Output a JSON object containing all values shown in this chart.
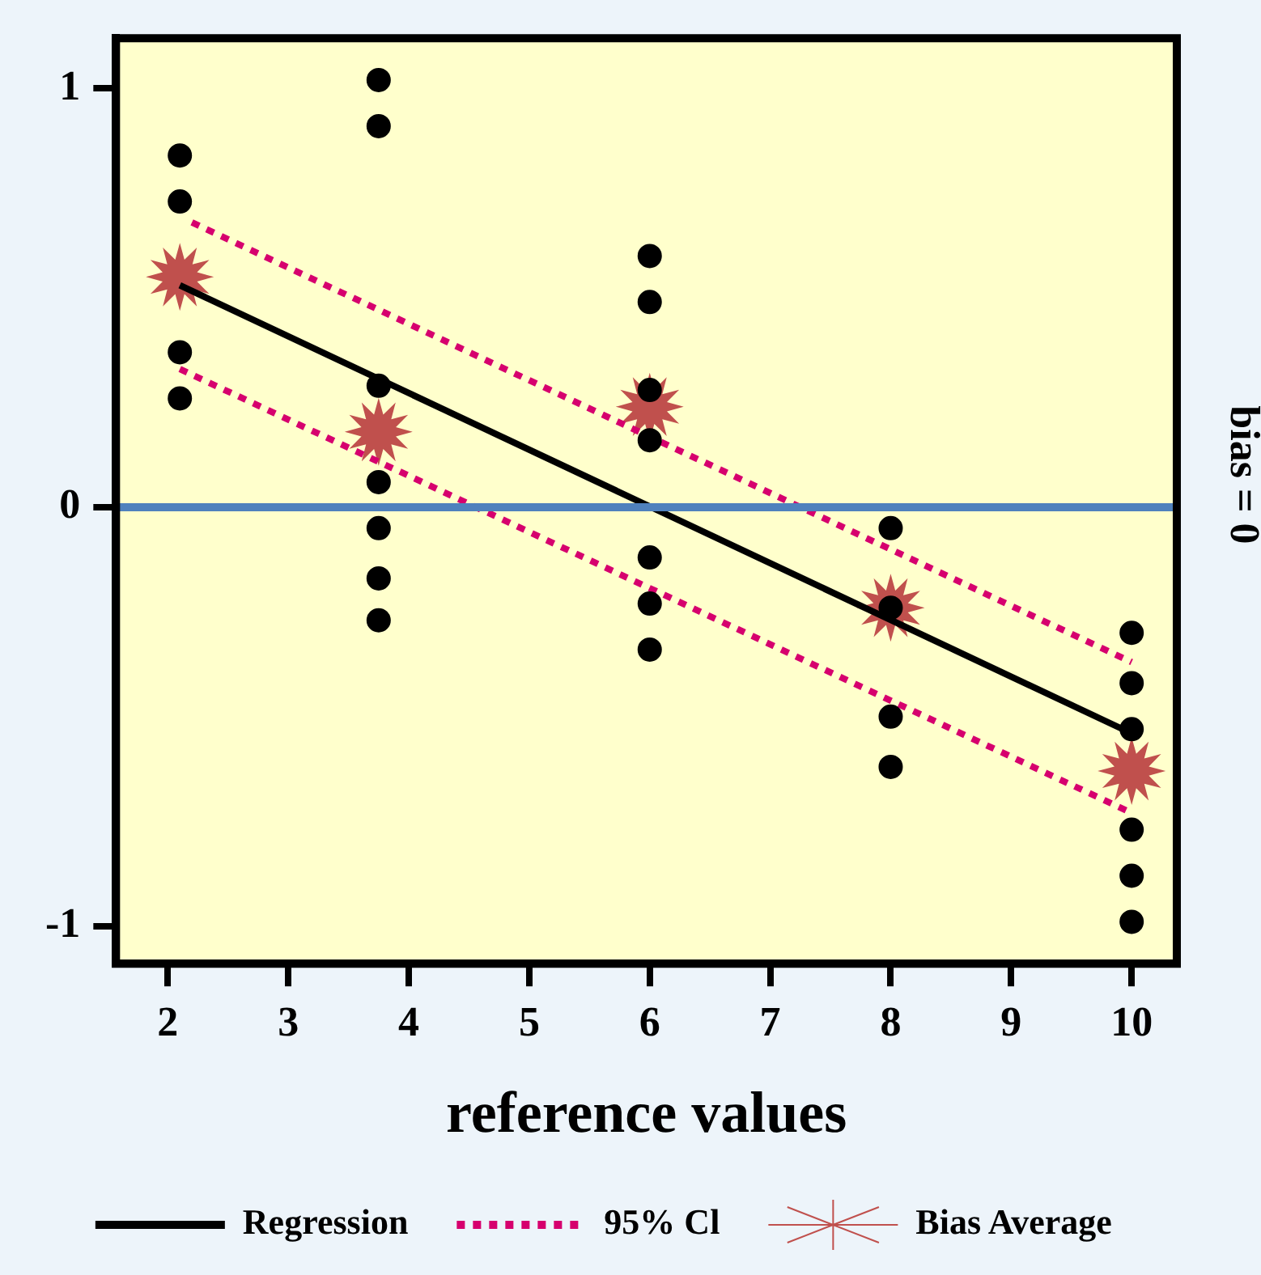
{
  "chart_data": {
    "type": "scatter",
    "xlabel": "reference values",
    "xlim": [
      1.57,
      10.375
    ],
    "xticks": [
      2,
      3,
      4,
      5,
      6,
      7,
      8,
      9,
      10
    ],
    "ylim": [
      -1.09,
      1.12
    ],
    "yticks": [
      -1,
      0,
      1
    ],
    "grid": false,
    "legend": "bottom",
    "series": [
      {
        "type": "scatter",
        "color": "#000000",
        "marker": "circle",
        "x": [
          2.1,
          2.1,
          2.1,
          2.1,
          3.75,
          3.75,
          3.75,
          3.75,
          3.75,
          3.75,
          3.75,
          6,
          6,
          6,
          6,
          6,
          6,
          6,
          8,
          8,
          8,
          8,
          10,
          10,
          10,
          10,
          10,
          10
        ],
        "values": [
          0.84,
          0.73,
          0.37,
          0.26,
          1.02,
          0.91,
          0.29,
          0.06,
          -0.05,
          -0.17,
          -0.27,
          0.6,
          0.49,
          0.28,
          0.16,
          -0.12,
          -0.23,
          -0.34,
          -0.05,
          -0.24,
          -0.5,
          -0.62,
          -0.3,
          -0.42,
          -0.53,
          -0.77,
          -0.88,
          -0.99
        ]
      },
      {
        "type": "line",
        "name": "Regression",
        "color": "#000000",
        "line_style": "solid",
        "marker": "none",
        "x": [
          2.1,
          10
        ],
        "values": [
          0.53,
          -0.54
        ]
      },
      {
        "type": "line",
        "name": "95% Cl",
        "color": "#d6006e",
        "line_style": "dotted",
        "marker": "none",
        "x": [
          2.2,
          10
        ],
        "values": [
          0.68,
          -0.37
        ]
      },
      {
        "type": "line",
        "color": "#d6006e",
        "line_style": "dotted",
        "marker": "none",
        "x": [
          2.1,
          10
        ],
        "values": [
          0.33,
          -0.73
        ]
      },
      {
        "type": "scatter",
        "name": "Bias Average",
        "color": "#c0504d",
        "marker": "star",
        "x": [
          2.1,
          3.75,
          6,
          8,
          10
        ],
        "values": [
          0.55,
          0.18,
          0.24,
          -0.24,
          -0.63
        ]
      }
    ],
    "ref_lines": [
      {
        "axis": "y",
        "value": 0,
        "label": "bias = 0",
        "color": "#4f81bd"
      }
    ]
  }
}
